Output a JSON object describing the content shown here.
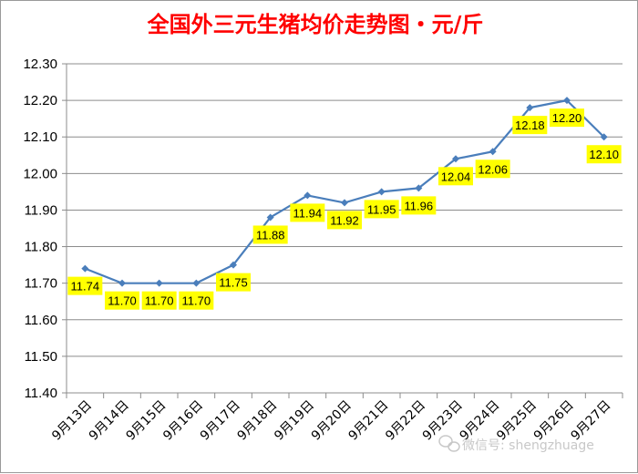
{
  "chart_data": {
    "type": "line",
    "title": "全国外三元生猪均价走势图・元/斤",
    "xlabel": "",
    "ylabel": "",
    "categories": [
      "9月13日",
      "9月14日",
      "9月15日",
      "9月16日",
      "9月17日",
      "9月18日",
      "9月19日",
      "9月20日",
      "9月21日",
      "9月22日",
      "9月23日",
      "9月24日",
      "9月25日",
      "9月26日",
      "9月27日"
    ],
    "series": [
      {
        "values": [
          11.74,
          11.7,
          11.7,
          11.7,
          11.75,
          11.88,
          11.94,
          11.92,
          11.95,
          11.96,
          12.04,
          12.06,
          12.18,
          12.2,
          12.1
        ]
      }
    ],
    "data_labels": [
      "11.74",
      "11.70",
      "11.70",
      "11.70",
      "11.75",
      "11.88",
      "11.94",
      "11.92",
      "11.95",
      "11.96",
      "12.04",
      "12.06",
      "12.18",
      "12.20",
      "12.10"
    ],
    "ylim": [
      11.4,
      12.3
    ],
    "y_ticks": [
      "11.40",
      "11.50",
      "11.60",
      "11.70",
      "11.80",
      "11.90",
      "12.00",
      "12.10",
      "12.20",
      "12.30"
    ],
    "grid": true,
    "legend": "none",
    "colors": {
      "line": "#4a7ebb",
      "marker": "#4a7ebb",
      "label_bg": "#ffff00",
      "title": "#ff0000",
      "grid": "#8c8c8c"
    }
  },
  "watermark": {
    "text": "微信号: shengzhuage",
    "icon": "wechat-icon"
  }
}
